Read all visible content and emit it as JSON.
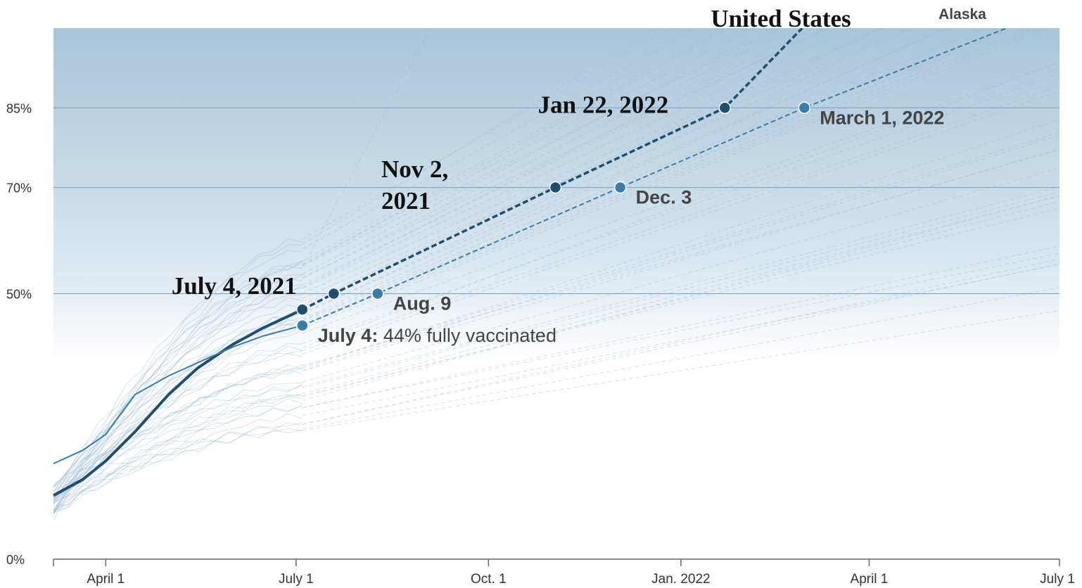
{
  "chart_data": {
    "type": "line",
    "x_axis": {
      "type": "date",
      "range": [
        "2021-03-07",
        "2022-07-01"
      ],
      "ticks": [
        {
          "date": "2021-04-01",
          "label": "April 1"
        },
        {
          "date": "2021-07-01",
          "label": "July 1"
        },
        {
          "date": "2021-10-01",
          "label": "Oct. 1"
        },
        {
          "date": "2022-01-01",
          "label": "Jan. 2022"
        },
        {
          "date": "2022-04-01",
          "label": "April 1"
        },
        {
          "date": "2022-07-01",
          "label": "July 1"
        }
      ]
    },
    "y_axis": {
      "range": [
        0,
        100
      ],
      "ticks": [
        {
          "value": 0,
          "label": "0%"
        },
        {
          "value": 50,
          "label": "50%"
        },
        {
          "value": 70,
          "label": "70%"
        },
        {
          "value": 85,
          "label": "85%"
        }
      ]
    },
    "grid": true,
    "series": [
      {
        "name": "United States",
        "color": "#1f4e6e",
        "actual": [
          {
            "x": "2021-03-07",
            "y": 12
          },
          {
            "x": "2021-03-21",
            "y": 15
          },
          {
            "x": "2021-04-01",
            "y": 18.5
          },
          {
            "x": "2021-04-15",
            "y": 24
          },
          {
            "x": "2021-05-01",
            "y": 31
          },
          {
            "x": "2021-05-15",
            "y": 36
          },
          {
            "x": "2021-06-01",
            "y": 40.5
          },
          {
            "x": "2021-06-15",
            "y": 43.5
          },
          {
            "x": "2021-07-04",
            "y": 47
          }
        ],
        "projected": [
          {
            "x": "2021-07-04",
            "y": 47
          },
          {
            "x": "2021-07-19",
            "y": 50
          },
          {
            "x": "2021-11-02",
            "y": 70
          },
          {
            "x": "2022-01-22",
            "y": 85
          },
          {
            "x": "2022-02-28",
            "y": 100
          }
        ]
      },
      {
        "name": "Alaska",
        "color": "#3a7ca5",
        "actual": [
          {
            "x": "2021-03-07",
            "y": 18
          },
          {
            "x": "2021-03-21",
            "y": 20.5
          },
          {
            "x": "2021-04-01",
            "y": 23.5
          },
          {
            "x": "2021-04-15",
            "y": 31
          },
          {
            "x": "2021-05-01",
            "y": 34.5
          },
          {
            "x": "2021-05-15",
            "y": 37
          },
          {
            "x": "2021-06-01",
            "y": 40
          },
          {
            "x": "2021-06-15",
            "y": 42
          },
          {
            "x": "2021-07-04",
            "y": 44
          }
        ],
        "projected": [
          {
            "x": "2021-07-04",
            "y": 44
          },
          {
            "x": "2021-08-09",
            "y": 50
          },
          {
            "x": "2021-12-03",
            "y": 70
          },
          {
            "x": "2022-03-01",
            "y": 85
          },
          {
            "x": "2022-06-25",
            "y": 103
          }
        ]
      }
    ],
    "background_series": {
      "count": 48,
      "color": "#8fb3cc",
      "actual_end_date": "2021-07-04",
      "projected_end_date": "2022-07-01"
    },
    "annotations": [
      {
        "series": "United States",
        "x": "2021-07-04",
        "y": 47,
        "label": "July 4, 2021"
      },
      {
        "series": "United States",
        "x": "2021-07-19",
        "y": 50,
        "label": ""
      },
      {
        "series": "United States",
        "x": "2021-11-02",
        "y": 70,
        "label": "Nov 2, 2021",
        "lines": [
          "Nov 2,",
          "2021"
        ]
      },
      {
        "series": "United States",
        "x": "2022-01-22",
        "y": 85,
        "label": "Jan 22, 2022"
      },
      {
        "series": "Alaska",
        "x": "2021-07-04",
        "y": 44,
        "label_bold": "July 4:",
        "label_rest": " 44% fully vaccinated"
      },
      {
        "series": "Alaska",
        "x": "2021-08-09",
        "y": 50,
        "label": "Aug. 9"
      },
      {
        "series": "Alaska",
        "x": "2021-12-03",
        "y": 70,
        "label": "Dec. 3"
      },
      {
        "series": "Alaska",
        "x": "2022-03-01",
        "y": 85,
        "label": "March 1, 2022"
      }
    ],
    "colors": {
      "gradient_top": "#a9c5d9",
      "us": "#1f4e6e",
      "alaska": "#3a7ca5",
      "gridline": "#87a9c1"
    }
  }
}
